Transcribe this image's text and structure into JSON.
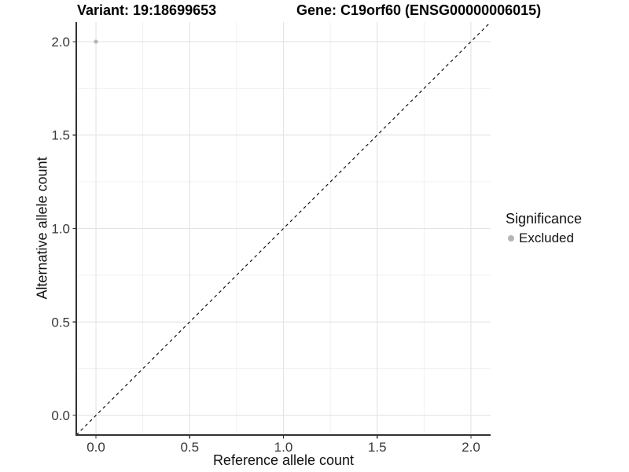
{
  "chart_data": {
    "type": "scatter",
    "title_left": "Variant: 19:18699653",
    "title_right": "Gene: C19orf60 (ENSG00000006015)",
    "xlabel": "Reference allele count",
    "ylabel": "Alternative allele count",
    "xlim": [
      -0.105,
      2.105
    ],
    "ylim": [
      -0.105,
      2.105
    ],
    "xticks": [
      "0.0",
      "0.5",
      "1.0",
      "1.5",
      "2.0"
    ],
    "yticks": [
      "0.0",
      "0.5",
      "1.0",
      "1.5",
      "2.0"
    ],
    "minor_ticks": [
      0.25,
      0.75,
      1.25,
      1.75
    ],
    "grid": true,
    "reference_line": {
      "type": "diagonal",
      "slope": 1,
      "intercept": 0,
      "style": "dashed",
      "color": "#000000"
    },
    "series": [
      {
        "name": "Excluded",
        "color": "#b5b5b5",
        "points": [
          {
            "x": 0,
            "y": 2
          }
        ]
      }
    ],
    "legend": {
      "title": "Significance",
      "position": "right",
      "entries": [
        {
          "label": "Excluded",
          "color": "#b5b5b5",
          "marker": "dot"
        }
      ]
    }
  },
  "colors": {
    "background": "#ffffff",
    "grid_major": "#e3e3e3",
    "grid_minor": "#efefef",
    "axis_line": "#333333",
    "tick_text": "#383838",
    "point": "#b5b5b5",
    "reference_line": "#000000"
  }
}
